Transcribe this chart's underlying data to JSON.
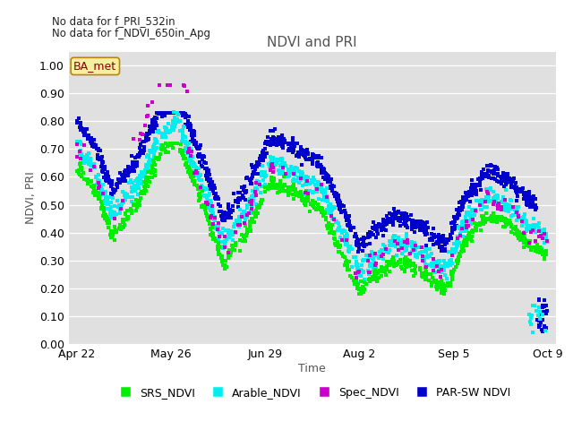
{
  "title": "NDVI and PRI",
  "xlabel": "Time",
  "ylabel": "NDVI, PRI",
  "ylim": [
    0.0,
    1.05
  ],
  "note_line1": "No data for f_PRI_532in",
  "note_line2": "No data for f_NDVI_650in_Apg",
  "box_label": "BA_met",
  "legend_entries": [
    "SRS_NDVI",
    "Arable_NDVI",
    "Spec_NDVI",
    "PAR-SW NDVI"
  ],
  "colors": {
    "SRS_NDVI": "#00ee00",
    "Arable_NDVI": "#00eeee",
    "Spec_NDVI": "#cc00cc",
    "PAR-SW NDVI": "#0000cc"
  },
  "bg_color": "#e0e0e0",
  "yticks": [
    0.0,
    0.1,
    0.2,
    0.3,
    0.4,
    0.5,
    0.6,
    0.7,
    0.8,
    0.9,
    1.0
  ],
  "xtick_labels": [
    "Apr 22",
    "May 26",
    "Jun 29",
    "Aug 2",
    "Sep 5",
    "Oct 9"
  ],
  "xtick_positions": [
    112,
    146,
    180,
    214,
    248,
    282
  ],
  "xlim": [
    109,
    285
  ]
}
